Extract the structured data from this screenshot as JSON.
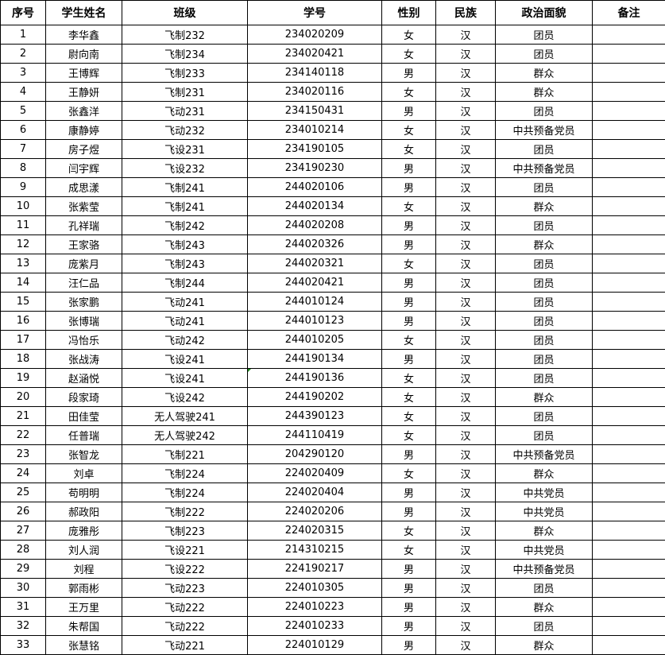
{
  "headers": [
    "序号",
    "学生姓名",
    "班级",
    "学号",
    "性别",
    "民族",
    "政治面貌",
    "备注"
  ],
  "rows": [
    [
      "1",
      "李华鑫",
      "飞制232",
      "234020209",
      "女",
      "汉",
      "团员",
      ""
    ],
    [
      "2",
      "尉向南",
      "飞制234",
      "234020421",
      "女",
      "汉",
      "团员",
      ""
    ],
    [
      "3",
      "王博辉",
      "飞制233",
      "234140118",
      "男",
      "汉",
      "群众",
      ""
    ],
    [
      "4",
      "王静妍",
      "飞制231",
      "234020116",
      "女",
      "汉",
      "群众",
      ""
    ],
    [
      "5",
      "张鑫洋",
      "飞动231",
      "234150431",
      "男",
      "汉",
      "团员",
      ""
    ],
    [
      "6",
      "康静婷",
      "飞动232",
      "234010214",
      "女",
      "汉",
      "中共预备党员",
      ""
    ],
    [
      "7",
      "房子煜",
      "飞设231",
      "234190105",
      "女",
      "汉",
      "团员",
      ""
    ],
    [
      "8",
      "闫宇辉",
      "飞设232",
      "234190230",
      "男",
      "汉",
      "中共预备党员",
      ""
    ],
    [
      "9",
      "成思漾",
      "飞制241",
      "244020106",
      "男",
      "汉",
      "团员",
      ""
    ],
    [
      "10",
      "张紫莹",
      "飞制241",
      "244020134",
      "女",
      "汉",
      "群众",
      ""
    ],
    [
      "11",
      "孔祥瑞",
      "飞制242",
      "244020208",
      "男",
      "汉",
      "团员",
      ""
    ],
    [
      "12",
      "王家骆",
      "飞制243",
      "244020326",
      "男",
      "汉",
      "群众",
      ""
    ],
    [
      "13",
      "庞紫月",
      "飞制243",
      "244020321",
      "女",
      "汉",
      "团员",
      ""
    ],
    [
      "14",
      "汪仁品",
      "飞制244",
      "244020421",
      "男",
      "汉",
      "团员",
      ""
    ],
    [
      "15",
      "张家鹏",
      "飞动241",
      "244010124",
      "男",
      "汉",
      "团员",
      ""
    ],
    [
      "16",
      "张博瑞",
      "飞动241",
      "244010123",
      "男",
      "汉",
      "团员",
      ""
    ],
    [
      "17",
      "冯怡乐",
      "飞动242",
      "244010205",
      "女",
      "汉",
      "团员",
      ""
    ],
    [
      "18",
      "张战涛",
      "飞设241",
      "244190134",
      "男",
      "汉",
      "团员",
      ""
    ],
    [
      "19",
      "赵涵悦",
      "飞设241",
      "244190136",
      "女",
      "汉",
      "团员",
      ""
    ],
    [
      "20",
      "段家琦",
      "飞设242",
      "244190202",
      "女",
      "汉",
      "群众",
      ""
    ],
    [
      "21",
      "田佳莹",
      "无人驾驶241",
      "244390123",
      "女",
      "汉",
      "团员",
      ""
    ],
    [
      "22",
      "任普瑞",
      "无人驾驶242",
      "244110419",
      "女",
      "汉",
      "团员",
      ""
    ],
    [
      "23",
      "张智龙",
      "飞制221",
      "204290120",
      "男",
      "汉",
      "中共预备党员",
      ""
    ],
    [
      "24",
      "刘卓",
      "飞制224",
      "224020409",
      "女",
      "汉",
      "群众",
      ""
    ],
    [
      "25",
      "苟明明",
      "飞制224",
      "224020404",
      "男",
      "汉",
      "中共党员",
      ""
    ],
    [
      "26",
      "郝政阳",
      "飞制222",
      "224020206",
      "男",
      "汉",
      "中共党员",
      ""
    ],
    [
      "27",
      "庞雅彤",
      "飞制223",
      "224020315",
      "女",
      "汉",
      "群众",
      ""
    ],
    [
      "28",
      "刘人润",
      "飞设221",
      "214310215",
      "女",
      "汉",
      "中共党员",
      ""
    ],
    [
      "29",
      "刘程",
      "飞设222",
      "224190217",
      "男",
      "汉",
      "中共预备党员",
      ""
    ],
    [
      "30",
      "郭雨彬",
      "飞动223",
      "224010305",
      "男",
      "汉",
      "团员",
      ""
    ],
    [
      "31",
      "王万里",
      "飞动222",
      "224010223",
      "男",
      "汉",
      "群众",
      ""
    ],
    [
      "32",
      "朱帮国",
      "飞动222",
      "224010233",
      "男",
      "汉",
      "团员",
      ""
    ],
    [
      "33",
      "张慧铭",
      "飞动221",
      "224010129",
      "男",
      "汉",
      "群众",
      ""
    ]
  ],
  "colors": {
    "border": "#000000",
    "cell_marker": "#1a8a1a"
  }
}
